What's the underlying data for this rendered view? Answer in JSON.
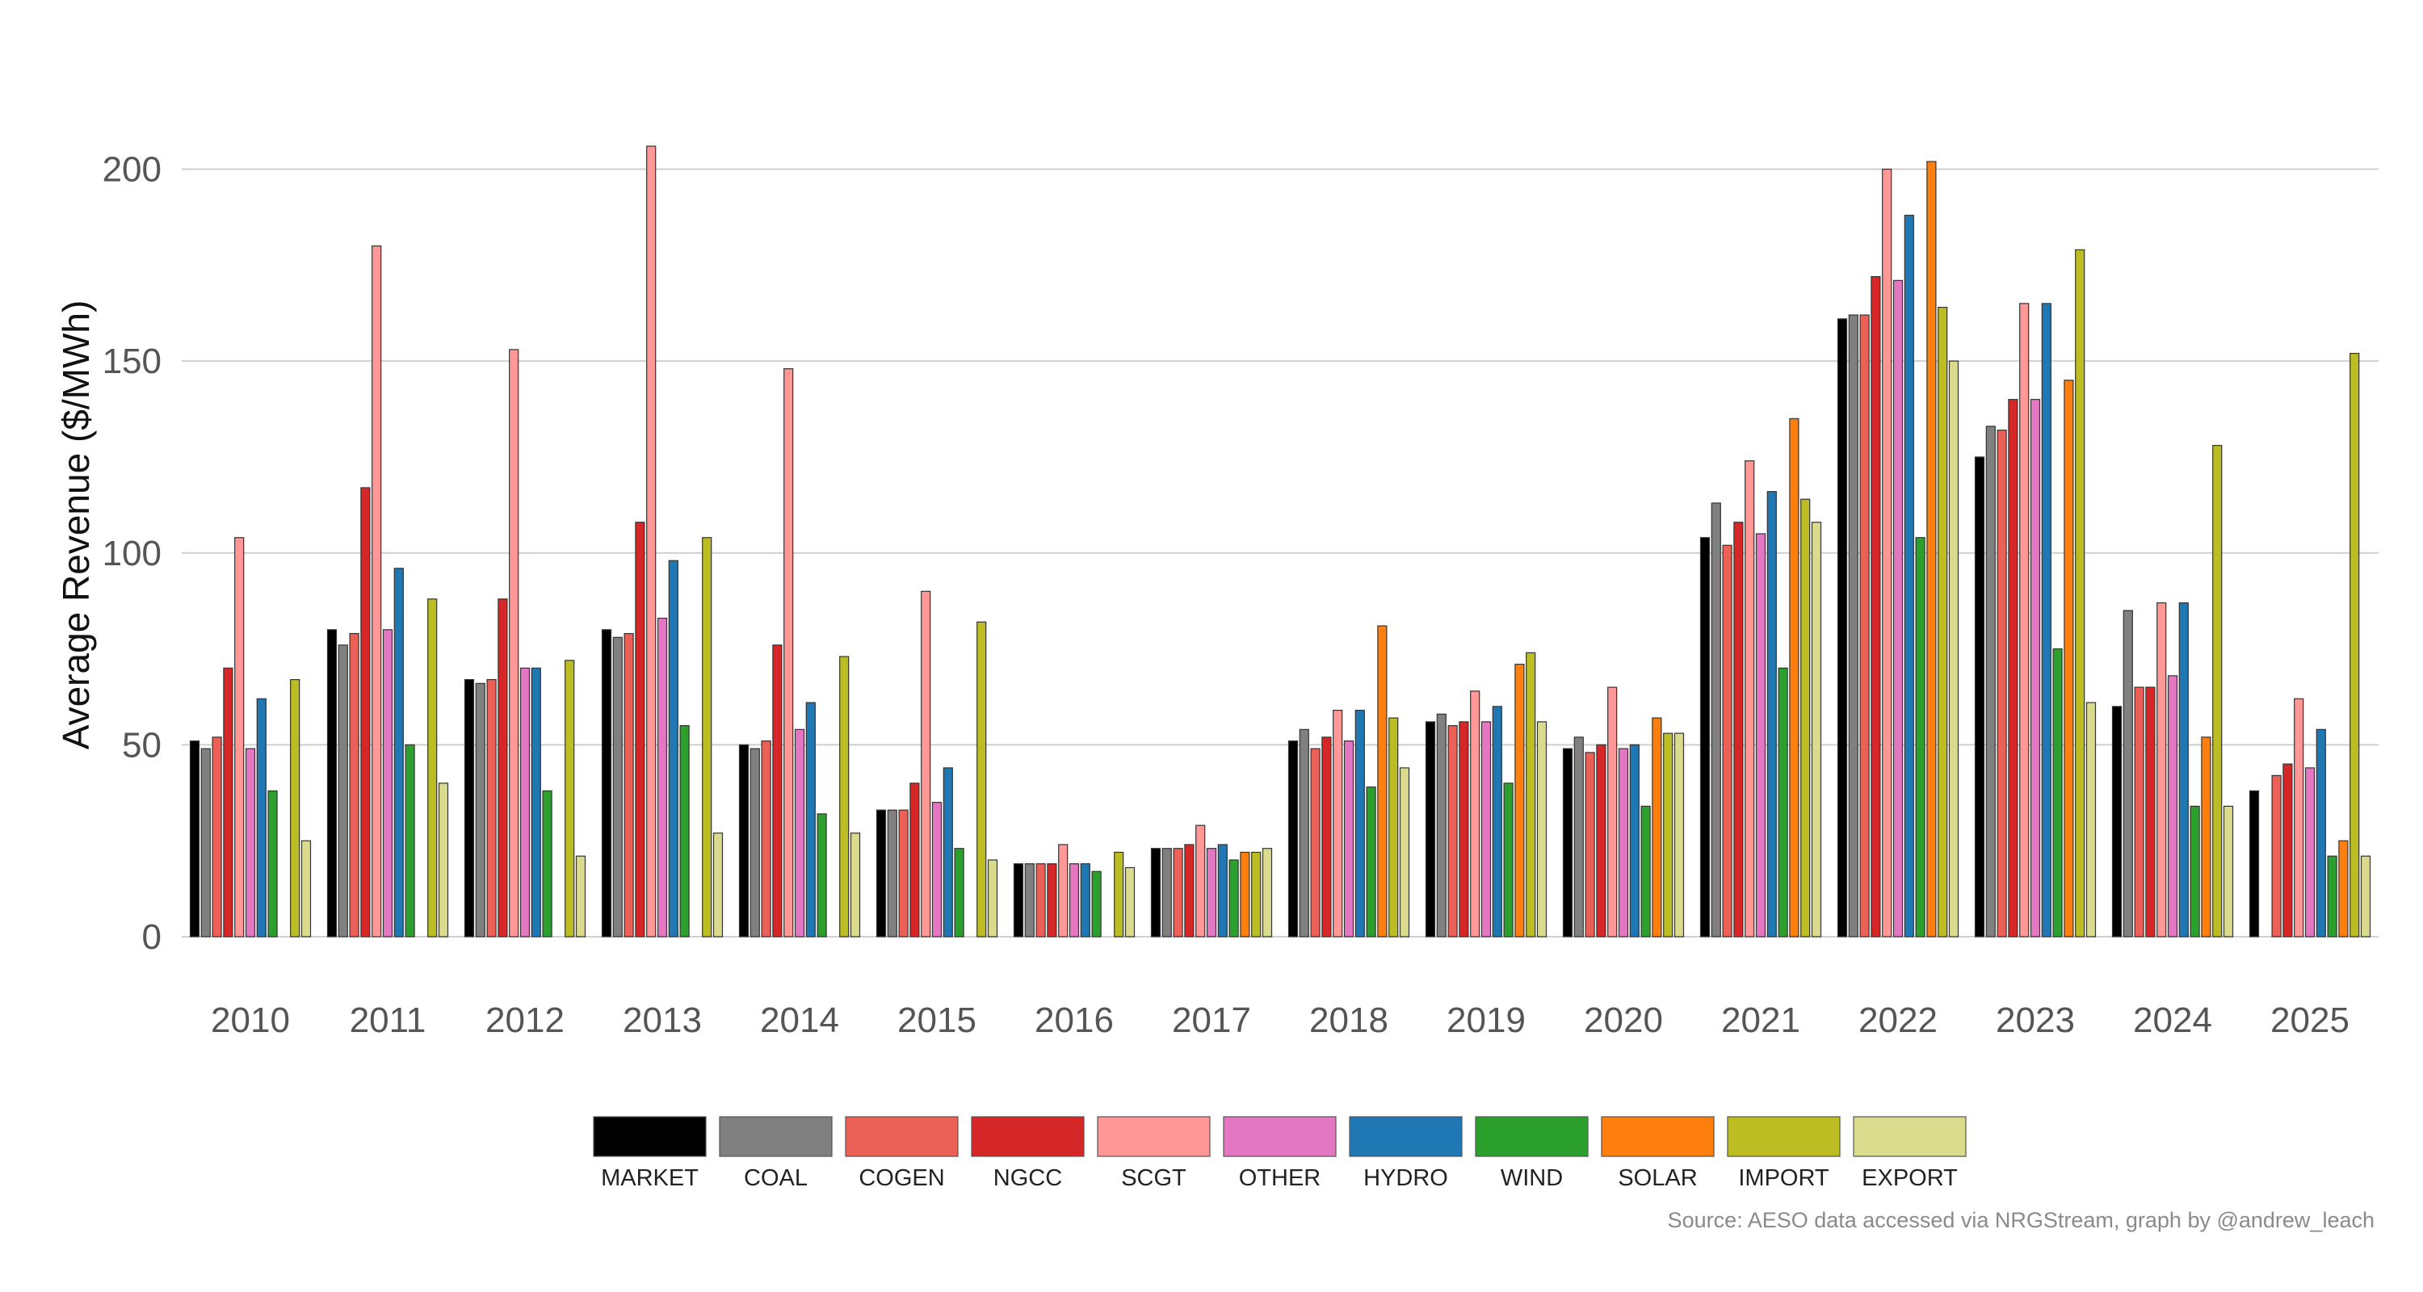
{
  "chart_data": {
    "type": "bar",
    "title": "",
    "xlabel": "",
    "ylabel": "Average Revenue ($/MWh)",
    "ylim": [
      0,
      210
    ],
    "yticks": [
      0,
      50,
      100,
      150,
      200
    ],
    "grid": "horizontal",
    "legend_position": "bottom",
    "caption": "Source: AESO data accessed via NRGStream, graph by @andrew_leach",
    "categories": [
      "2010",
      "2011",
      "2012",
      "2013",
      "2014",
      "2015",
      "2016",
      "2017",
      "2018",
      "2019",
      "2020",
      "2021",
      "2022",
      "2023",
      "2024",
      "2025"
    ],
    "series": [
      {
        "name": "MARKET",
        "color": "#000000",
        "values": [
          51,
          80,
          67,
          80,
          50,
          33,
          19,
          23,
          51,
          56,
          49,
          104,
          161,
          125,
          60,
          38
        ]
      },
      {
        "name": "COAL",
        "color": "#808080",
        "values": [
          49,
          76,
          66,
          78,
          49,
          33,
          19,
          23,
          54,
          58,
          52,
          113,
          162,
          133,
          85,
          0
        ]
      },
      {
        "name": "COGEN",
        "color": "#ec6157",
        "values": [
          52,
          79,
          67,
          79,
          51,
          33,
          19,
          23,
          49,
          55,
          48,
          102,
          162,
          132,
          65,
          42
        ]
      },
      {
        "name": "NGCC",
        "color": "#d62728",
        "values": [
          70,
          117,
          88,
          108,
          76,
          40,
          19,
          24,
          52,
          56,
          50,
          108,
          172,
          140,
          65,
          45
        ]
      },
      {
        "name": "SCGT",
        "color": "#ff9896",
        "values": [
          104,
          180,
          153,
          206,
          148,
          90,
          24,
          29,
          59,
          64,
          65,
          124,
          200,
          165,
          87,
          62
        ]
      },
      {
        "name": "OTHER",
        "color": "#e377c2",
        "values": [
          49,
          80,
          70,
          83,
          54,
          35,
          19,
          23,
          51,
          56,
          49,
          105,
          171,
          140,
          68,
          44
        ]
      },
      {
        "name": "HYDRO",
        "color": "#1f77b4",
        "values": [
          62,
          96,
          70,
          98,
          61,
          44,
          19,
          24,
          59,
          60,
          50,
          116,
          188,
          165,
          87,
          54
        ]
      },
      {
        "name": "WIND",
        "color": "#2ca02c",
        "values": [
          38,
          50,
          38,
          55,
          32,
          23,
          17,
          20,
          39,
          40,
          34,
          70,
          104,
          75,
          34,
          21
        ]
      },
      {
        "name": "SOLAR",
        "color": "#ff7f0e",
        "values": [
          0,
          0,
          0,
          0,
          0,
          0,
          0,
          22,
          81,
          71,
          57,
          135,
          202,
          145,
          52,
          25
        ]
      },
      {
        "name": "IMPORT",
        "color": "#bcbd22",
        "values": [
          67,
          88,
          72,
          104,
          73,
          82,
          22,
          22,
          57,
          74,
          53,
          114,
          164,
          179,
          128,
          152
        ]
      },
      {
        "name": "EXPORT",
        "color": "#dbdb8d",
        "values": [
          25,
          40,
          21,
          27,
          27,
          20,
          18,
          23,
          44,
          56,
          53,
          108,
          150,
          61,
          34,
          21
        ]
      }
    ]
  }
}
